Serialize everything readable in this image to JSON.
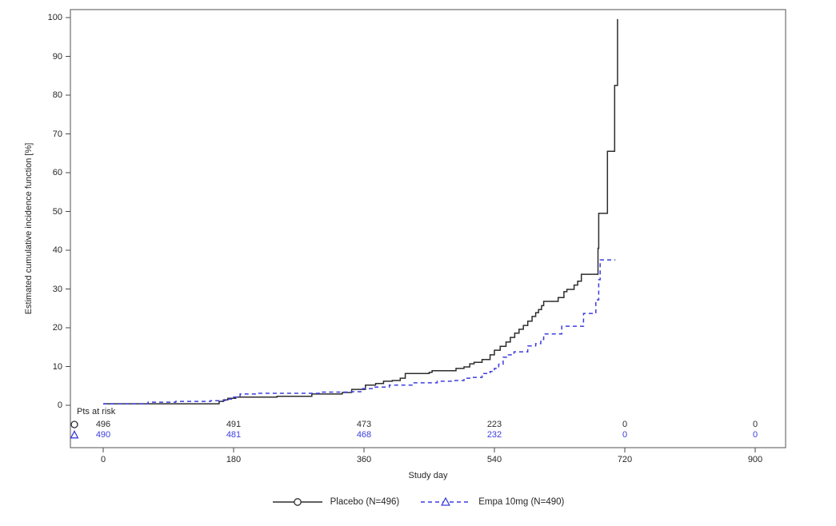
{
  "chart_data": {
    "type": "line",
    "step": "after",
    "title": "",
    "xlabel": "Study day",
    "ylabel": "Estimated cumulative incidence function [%]",
    "x_ticks": [
      0,
      180,
      360,
      540,
      720,
      900
    ],
    "y_ticks": [
      0,
      10,
      20,
      30,
      40,
      50,
      60,
      70,
      80,
      90,
      100
    ],
    "xlim": [
      -45,
      945
    ],
    "ylim": [
      -11,
      102
    ],
    "grid": false,
    "legend_position": "bottom-center",
    "series": [
      {
        "name": "Placebo (N=496)",
        "color": "#2d2d2d",
        "line_style": "solid",
        "marker": "circle",
        "points": [
          [
            0,
            0.4
          ],
          [
            155,
            0.4
          ],
          [
            160,
            1.0
          ],
          [
            166,
            1.4
          ],
          [
            172,
            1.8
          ],
          [
            183,
            2.1
          ],
          [
            240,
            2.3
          ],
          [
            288,
            2.9
          ],
          [
            330,
            3.3
          ],
          [
            343,
            4.1
          ],
          [
            362,
            5.2
          ],
          [
            376,
            5.6
          ],
          [
            387,
            6.2
          ],
          [
            399,
            6.4
          ],
          [
            410,
            7.0
          ],
          [
            417,
            8.2
          ],
          [
            450,
            8.5
          ],
          [
            454,
            8.9
          ],
          [
            487,
            9.5
          ],
          [
            498,
            9.9
          ],
          [
            506,
            10.7
          ],
          [
            512,
            11.1
          ],
          [
            523,
            11.8
          ],
          [
            534,
            13.0
          ],
          [
            540,
            14.2
          ],
          [
            548,
            15.2
          ],
          [
            556,
            16.3
          ],
          [
            562,
            17.5
          ],
          [
            568,
            18.6
          ],
          [
            574,
            19.6
          ],
          [
            580,
            20.6
          ],
          [
            586,
            21.7
          ],
          [
            592,
            22.9
          ],
          [
            597,
            23.9
          ],
          [
            601,
            24.7
          ],
          [
            605,
            25.7
          ],
          [
            608,
            26.8
          ],
          [
            628,
            27.8
          ],
          [
            636,
            29.3
          ],
          [
            640,
            29.9
          ],
          [
            650,
            31.0
          ],
          [
            655,
            32.0
          ],
          [
            660,
            33.8
          ],
          [
            683,
            40.5
          ],
          [
            684,
            49.5
          ],
          [
            696,
            65.5
          ],
          [
            706,
            82.5
          ],
          [
            710,
            99.6
          ]
        ]
      },
      {
        "name": "Empa 10mg (N=490)",
        "color": "#3c3ce0",
        "line_style": "dashed",
        "marker": "triangle",
        "points": [
          [
            0,
            0.4
          ],
          [
            62,
            0.8
          ],
          [
            100,
            1.0
          ],
          [
            148,
            1.2
          ],
          [
            168,
            1.6
          ],
          [
            180,
            2.1
          ],
          [
            189,
            2.9
          ],
          [
            210,
            3.1
          ],
          [
            300,
            3.4
          ],
          [
            343,
            3.5
          ],
          [
            358,
            4.3
          ],
          [
            373,
            4.7
          ],
          [
            395,
            5.2
          ],
          [
            428,
            5.8
          ],
          [
            461,
            6.2
          ],
          [
            483,
            6.4
          ],
          [
            498,
            7.0
          ],
          [
            509,
            7.2
          ],
          [
            523,
            8.2
          ],
          [
            534,
            8.7
          ],
          [
            540,
            9.5
          ],
          [
            546,
            10.6
          ],
          [
            552,
            12.4
          ],
          [
            558,
            13.0
          ],
          [
            567,
            13.8
          ],
          [
            586,
            15.3
          ],
          [
            597,
            15.9
          ],
          [
            604,
            17.0
          ],
          [
            608,
            18.4
          ],
          [
            633,
            20.4
          ],
          [
            663,
            23.7
          ],
          [
            680,
            27.2
          ],
          [
            684,
            32.4
          ],
          [
            686,
            37.5
          ],
          [
            707,
            37.5
          ]
        ]
      }
    ],
    "at_risk": {
      "label": "Pts at risk",
      "days": [
        0,
        180,
        360,
        540,
        720,
        900
      ],
      "rows": [
        {
          "series": "Placebo",
          "marker": "circle",
          "color": "#2d2d2d",
          "counts": [
            496,
            491,
            473,
            223,
            0,
            0
          ]
        },
        {
          "series": "Empa 10mg",
          "marker": "triangle",
          "color": "#3c3ce0",
          "counts": [
            490,
            481,
            468,
            232,
            0,
            0
          ]
        }
      ]
    }
  },
  "legend": {
    "entries": [
      {
        "label": "Placebo (N=496)"
      },
      {
        "label": "Empa 10mg (N=490)"
      }
    ]
  }
}
